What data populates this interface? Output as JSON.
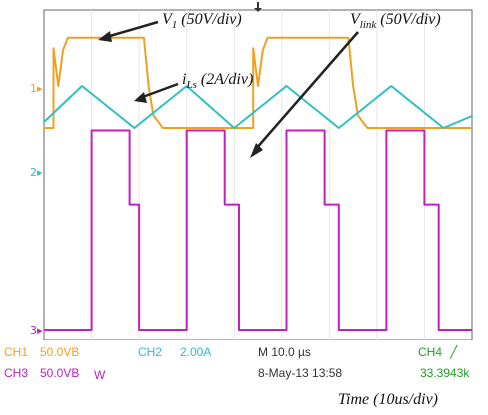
{
  "chart_data": {
    "type": "line",
    "title": "",
    "xlabel": "Time (10us/div)",
    "ylabel": "",
    "time_per_div_us": 10,
    "series": [
      {
        "name": "V1 (50V/div)",
        "channel": "CH1",
        "color": "#f0a020",
        "x_us": [
          0,
          2,
          2,
          3,
          4,
          5,
          20,
          21,
          22,
          23,
          24,
          25,
          42,
          44,
          44,
          45,
          46,
          47,
          63,
          64,
          65,
          66,
          67,
          68,
          90
        ],
        "y_div": [
          0,
          0,
          3.8,
          2.0,
          3.7,
          4.3,
          4.3,
          4.3,
          2.0,
          0.6,
          0.3,
          0,
          0,
          0,
          3.8,
          2.0,
          3.7,
          4.3,
          4.3,
          4.3,
          2.0,
          0.6,
          0.3,
          0,
          0
        ]
      },
      {
        "name": "iLs (2A/div)",
        "channel": "CH2",
        "color": "#30c0c0",
        "x_us": [
          0,
          8,
          19,
          30,
          40,
          51,
          62,
          73,
          84,
          90
        ],
        "y_div": [
          0.1,
          0.7,
          0,
          0.7,
          0,
          0.7,
          0,
          0.7,
          0,
          0.2
        ]
      },
      {
        "name": "Vlink (50V/div)",
        "channel": "CH3",
        "color": "#c020c0",
        "x_us": [
          0,
          10,
          10,
          18,
          18,
          20,
          20,
          30,
          30,
          38,
          38,
          41,
          41,
          51,
          51,
          59,
          59,
          62,
          62,
          72,
          72,
          80,
          80,
          83,
          83,
          90
        ],
        "y_div": [
          0,
          0,
          3.5,
          3.5,
          2.2,
          2.2,
          0,
          0,
          3.5,
          3.5,
          2.2,
          2.2,
          0,
          0,
          3.5,
          3.5,
          2.2,
          2.2,
          0,
          0,
          3.5,
          3.5,
          2.2,
          2.2,
          0,
          0
        ]
      }
    ],
    "annotations": [
      {
        "main": "V",
        "sub": "1",
        "rest": " (50V/div)"
      },
      {
        "main": "V",
        "sub": "link",
        "rest": " (50V/div)"
      },
      {
        "main": "i",
        "sub": "Ls",
        "rest": " (2A/div)"
      }
    ]
  },
  "scope": {
    "ch_markers": [
      "1",
      "2",
      "3"
    ],
    "status": {
      "ch1": "CH1",
      "ch1_scale": "50.0VB",
      "ch2": "CH2",
      "ch2_scale": "2.00A",
      "ch3": "CH3",
      "ch3_scale": "50.0VB",
      "timebase": "M 10.0 µs",
      "date": "8-May-13 13:58",
      "ch4": "CH4",
      "ch4_value": "33.3943k",
      "bw_mark": "W"
    },
    "caption": "Time (10us/div)"
  }
}
